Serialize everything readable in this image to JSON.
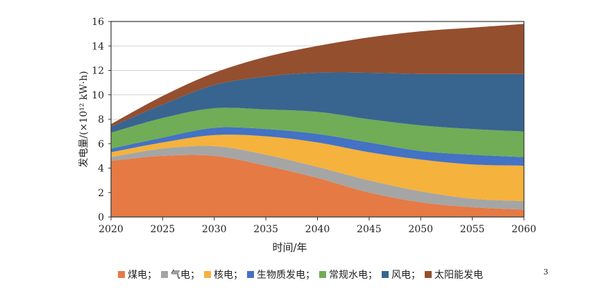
{
  "chart_data": {
    "type": "area",
    "stacked": true,
    "xlabel": "时间/年",
    "ylabel": "发电量/(×10¹² kW·h)",
    "x": [
      2020,
      2025,
      2030,
      2035,
      2040,
      2045,
      2050,
      2055,
      2060
    ],
    "xlim": [
      2020,
      2060
    ],
    "ylim": [
      0,
      16
    ],
    "yticks": [
      0,
      2,
      4,
      6,
      8,
      10,
      12,
      14,
      16
    ],
    "grid": true,
    "legend_position": "bottom",
    "series": [
      {
        "name": "煤电；",
        "color": "#E57A45",
        "values": [
          4.6,
          5.0,
          5.0,
          4.2,
          3.2,
          2.0,
          1.2,
          0.8,
          0.6
        ]
      },
      {
        "name": "气电；",
        "color": "#A5A5A5",
        "values": [
          0.3,
          0.6,
          0.8,
          0.9,
          0.9,
          1.0,
          0.9,
          0.7,
          0.7
        ]
      },
      {
        "name": "核电；",
        "color": "#F5B23C",
        "values": [
          0.4,
          0.5,
          0.9,
          1.5,
          2.0,
          2.3,
          2.6,
          2.8,
          2.9
        ]
      },
      {
        "name": "生物质发电；",
        "color": "#4472C4",
        "values": [
          0.3,
          0.4,
          0.6,
          0.6,
          0.7,
          0.8,
          0.7,
          0.8,
          0.7
        ]
      },
      {
        "name": "常规水电；",
        "color": "#70AD56",
        "values": [
          1.3,
          1.6,
          1.6,
          1.6,
          1.8,
          1.9,
          2.1,
          2.1,
          2.1
        ]
      },
      {
        "name": "风电；",
        "color": "#386490",
        "values": [
          0.5,
          1.1,
          1.9,
          2.7,
          3.2,
          3.8,
          4.2,
          4.5,
          4.7
        ]
      },
      {
        "name": "太阳能发电",
        "color": "#944F2F",
        "values": [
          0.2,
          0.7,
          1.0,
          1.6,
          2.2,
          2.9,
          3.5,
          3.8,
          4.1
        ]
      }
    ]
  },
  "stray_mark": "3"
}
